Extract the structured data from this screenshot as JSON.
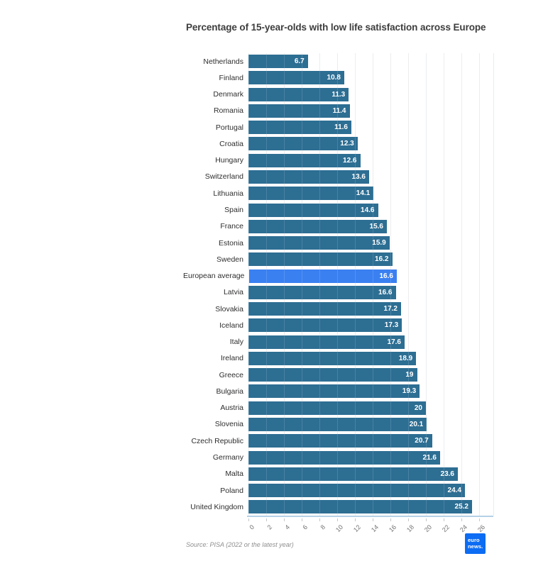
{
  "title": "Percentage of 15-year-olds with low life satisfaction across Europe",
  "source": "Source: PISA (2022 or the latest year)",
  "logo": {
    "line1": "euro",
    "line2": "news."
  },
  "colors": {
    "bar": "#2d6e93",
    "highlight": "#3a80f1",
    "logo_bg": "#0c6cf3",
    "gridline": "#e9ebee",
    "axis_line": "#b5d0e6"
  },
  "chart_data": {
    "type": "bar",
    "orientation": "horizontal",
    "title": "Percentage of 15-year-olds with low life satisfaction across Europe",
    "categories": [
      "Netherlands",
      "Finland",
      "Denmark",
      "Romania",
      "Portugal",
      "Croatia",
      "Hungary",
      "Switzerland",
      "Lithuania",
      "Spain",
      "France",
      "Estonia",
      "Sweden",
      "European average",
      "Latvia",
      "Slovakia",
      "Iceland",
      "Italy",
      "Ireland",
      "Greece",
      "Bulgaria",
      "Austria",
      "Slovenia",
      "Czech Republic",
      "Germany",
      "Malta",
      "Poland",
      "United Kingdom"
    ],
    "values": [
      6.7,
      10.8,
      11.3,
      11.4,
      11.6,
      12.3,
      12.6,
      13.6,
      14.1,
      14.6,
      15.6,
      15.9,
      16.2,
      16.6,
      16.6,
      17.2,
      17.3,
      17.6,
      18.9,
      19,
      19.3,
      20,
      20.1,
      20.7,
      21.6,
      23.6,
      24.4,
      25.2
    ],
    "value_labels": [
      "6.7",
      "10.8",
      "11.3",
      "11.4",
      "11.6",
      "12.3",
      "12.6",
      "13.6",
      "14.1",
      "14.6",
      "15.6",
      "15.9",
      "16.2",
      "16.6",
      "16.6",
      "17.2",
      "17.3",
      "17.6",
      "18.9",
      "19",
      "19.3",
      "20",
      "20.1",
      "20.7",
      "21.6",
      "23.6",
      "24.4",
      "25.2"
    ],
    "highlight_category": "European average",
    "highlight_index": 13,
    "x_ticks": [
      0,
      2,
      4,
      6,
      8,
      10,
      12,
      14,
      16,
      18,
      20,
      22,
      24,
      26
    ],
    "xlim": [
      0,
      27.7
    ],
    "grid": true,
    "legend": "none",
    "xlabel": "",
    "ylabel": ""
  }
}
